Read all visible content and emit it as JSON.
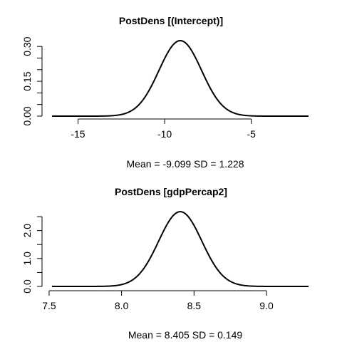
{
  "chart_data": [
    {
      "type": "line",
      "title": "PostDens [(Intercept)]",
      "xlabel": "Mean = -9.099 SD = 1.228",
      "ylabel": "",
      "mean": -9.099,
      "sd": 1.228,
      "xlim": [
        -16.5,
        -1.7
      ],
      "ylim": [
        0,
        0.325
      ],
      "xticks": [
        -15,
        -10,
        -5
      ],
      "xtick_labels": [
        "-15",
        "-10",
        "-5"
      ],
      "yticks": [
        0.0,
        0.05,
        0.1,
        0.15,
        0.2,
        0.25,
        0.3
      ],
      "ytick_labels": [
        "0.00",
        "",
        "",
        "0.15",
        "",
        "",
        "0.30"
      ],
      "grid": false,
      "legend": "none"
    },
    {
      "type": "line",
      "title": "PostDens [gdpPercap2]",
      "xlabel": "Mean = 8.405 SD = 0.149",
      "ylabel": "",
      "mean": 8.405,
      "sd": 0.149,
      "xlim": [
        7.52,
        9.29
      ],
      "ylim": [
        0,
        2.68
      ],
      "xticks": [
        7.5,
        8.0,
        8.5,
        9.0
      ],
      "xtick_labels": [
        "7.5",
        "8.0",
        "8.5",
        "9.0"
      ],
      "yticks": [
        0.0,
        0.5,
        1.0,
        1.5,
        2.0,
        2.5
      ],
      "ytick_labels": [
        "0.0",
        "",
        "1.0",
        "",
        "2.0",
        ""
      ],
      "grid": false,
      "legend": "none"
    }
  ]
}
